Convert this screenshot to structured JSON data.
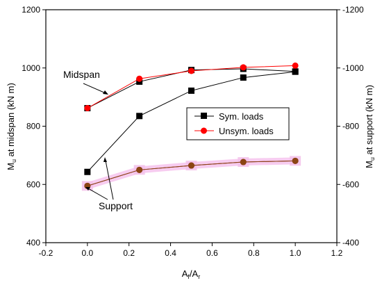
{
  "chart_data": {
    "type": "line",
    "title": "",
    "xlabel": {
      "main": "A",
      "sub1": "f",
      "mid": "/A",
      "sub2": "r"
    },
    "ylabel": {
      "main": "M",
      "sub": "u",
      "rest": " at midspan (kN m)"
    },
    "y2label": {
      "main": "M",
      "sub": "u",
      "rest": " at support (kN m)"
    },
    "xlim": [
      -0.2,
      1.2
    ],
    "ylim": [
      400,
      1200
    ],
    "y2lim": [
      -400,
      -1200
    ],
    "grid": false,
    "legend_position": "center-right",
    "x_ticks": [
      -0.2,
      0.0,
      0.2,
      0.4,
      0.6,
      0.8,
      1.0,
      1.2
    ],
    "x_tick_labels": [
      "-0.2",
      "0.0",
      "0.2",
      "0.4",
      "0.6",
      "0.8",
      "1.0",
      "1.2"
    ],
    "y_ticks": [
      400,
      600,
      800,
      1000,
      1200
    ],
    "y_tick_labels": [
      "400",
      "600",
      "800",
      "1000",
      "1200"
    ],
    "y2_ticks": [
      -400,
      -600,
      -800,
      -1000,
      -1200
    ],
    "y2_tick_labels": [
      "-400",
      "-600",
      "-800",
      "-1000",
      "-1200"
    ],
    "x": [
      0.0,
      0.25,
      0.5,
      0.75,
      1.0
    ],
    "series": [
      {
        "name": "Sym. loads",
        "group": "midspan",
        "color": "#000000",
        "marker": "square",
        "values": [
          862,
          953,
          993,
          997,
          988
        ]
      },
      {
        "name": "Unsym. loads",
        "group": "midspan",
        "color": "#ff0000",
        "marker": "circle",
        "values": [
          862,
          963,
          990,
          1002,
          1008
        ]
      },
      {
        "name": "Sym. loads",
        "group": "support",
        "axis": "right",
        "color": "#000000",
        "marker": "square",
        "values": [
          -643,
          -835,
          -922,
          -967,
          -987
        ]
      },
      {
        "name": "Unsym. loads",
        "group": "support",
        "axis": "right",
        "color": "#8b1a1a",
        "marker": "circle",
        "values": [
          -595,
          -650,
          -665,
          -677,
          -681
        ]
      },
      {
        "name": "Sym. loads",
        "group": "support-overlay",
        "axis": "right",
        "color": "#8b4513",
        "marker": "circle",
        "values": [
          -595,
          -650,
          -665,
          -677,
          -681
        ]
      }
    ],
    "legend": [
      {
        "label": "Sym. loads",
        "color": "#000000",
        "marker": "square"
      },
      {
        "label": "Unsym. loads",
        "color": "#ff0000",
        "marker": "circle"
      }
    ],
    "annotations": [
      {
        "text": "Midspan"
      },
      {
        "text": "Support"
      }
    ]
  }
}
